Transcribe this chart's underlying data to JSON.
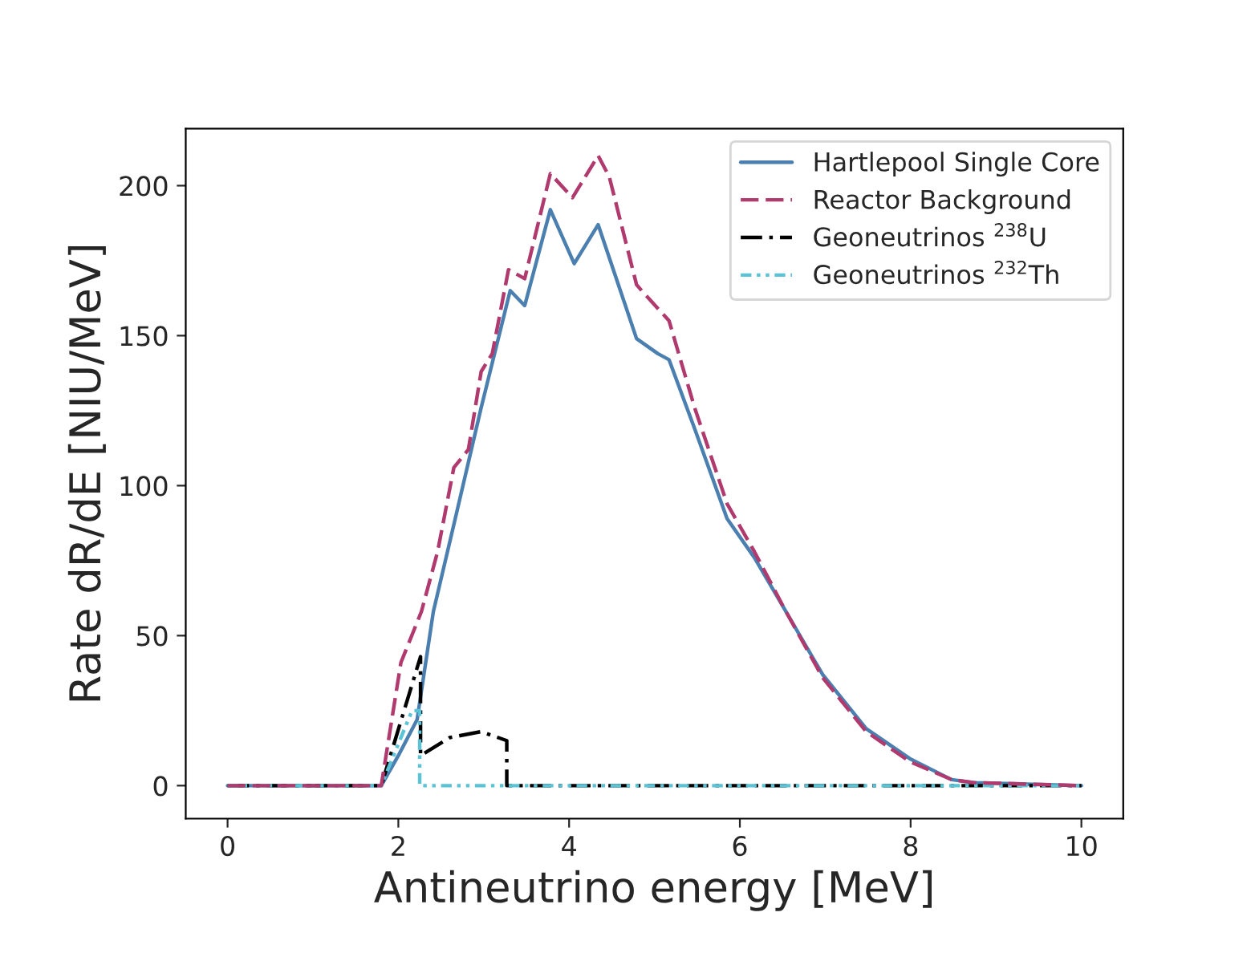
{
  "chart_data": {
    "type": "line",
    "xlabel": "Antineutrino energy [MeV]",
    "ylabel": "Rate dR/dE [NIU/MeV]",
    "xlim": [
      -0.49,
      10.49
    ],
    "ylim": [
      -11,
      219
    ],
    "xticks": [
      0,
      2,
      4,
      6,
      8,
      10
    ],
    "yticks": [
      0,
      50,
      100,
      150,
      200
    ],
    "grid": false,
    "legend": "top right",
    "marker": "none",
    "series": [
      {
        "name": "Hartlepool Single Core",
        "color": "#4a7fb0",
        "line_style": "solid",
        "x": [
          0,
          1.8,
          2.0,
          2.22,
          2.41,
          2.65,
          2.97,
          3.31,
          3.48,
          3.78,
          4.06,
          4.34,
          4.79,
          5.04,
          5.17,
          5.47,
          5.85,
          6.17,
          6.54,
          6.97,
          7.48,
          7.99,
          8.48,
          8.74,
          10
        ],
        "values": [
          0,
          0,
          10,
          22,
          58,
          87,
          126,
          165,
          160,
          192,
          174,
          187,
          149,
          144,
          142,
          119,
          89,
          76,
          58,
          37,
          19,
          9,
          2,
          1,
          0
        ]
      },
      {
        "name": "Reactor Background",
        "color": "#b03a6e",
        "line_style": "dashed",
        "x": [
          0,
          1.8,
          2.03,
          2.27,
          2.46,
          2.65,
          2.82,
          2.97,
          3.1,
          3.29,
          3.48,
          3.78,
          4.04,
          4.34,
          4.47,
          4.79,
          4.85,
          5.17,
          5.47,
          5.85,
          6.17,
          6.54,
          6.97,
          7.48,
          7.99,
          8.48,
          8.74,
          10
        ],
        "values": [
          0,
          0,
          41,
          58,
          78,
          106,
          112,
          138,
          144,
          172,
          169,
          204,
          196,
          210,
          203,
          167,
          165,
          155,
          126,
          94,
          78,
          58,
          36,
          18,
          8,
          2,
          1,
          0
        ]
      },
      {
        "name": "Geoneutrinos $^{238}$U",
        "color": "#000000",
        "line_style": "dashdot",
        "x": [
          0,
          1.8,
          2.26,
          2.26,
          2.6,
          2.97,
          3.27,
          3.27,
          10
        ],
        "values": [
          0,
          0,
          43,
          10,
          16,
          18,
          15,
          0,
          0
        ]
      },
      {
        "name": "Geoneutrinos $^{232}$Th",
        "color": "#5bc3d6",
        "line_style": "dashdotdot",
        "x": [
          0,
          1.8,
          2.16,
          2.25,
          2.25,
          10
        ],
        "values": [
          0,
          0,
          25,
          25,
          0,
          0
        ]
      }
    ]
  }
}
